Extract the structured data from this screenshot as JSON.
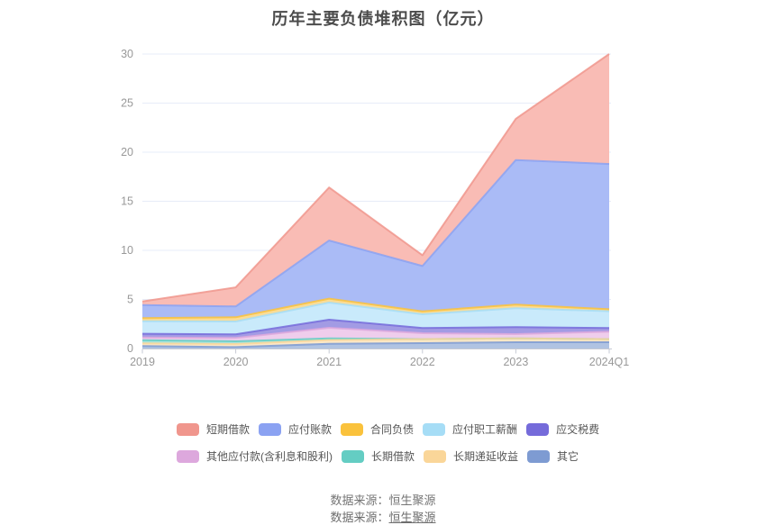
{
  "title": "历年主要负债堆积图（亿元）",
  "footer": {
    "source_label": "数据来源：恒生聚源",
    "source_prefix": "数据来源：",
    "source_name": "恒生聚源"
  },
  "chart_data": {
    "type": "area",
    "stacked": true,
    "stack_order": "last series at bottom, first series on top",
    "title": "历年主要负债堆积图（亿元）",
    "categories": [
      "2019",
      "2020",
      "2021",
      "2022",
      "2023",
      "2024Q1"
    ],
    "series": [
      {
        "key": "short-term-borrowings",
        "name": "短期借款",
        "color": "#F0968D",
        "fill": "#F9BCB5",
        "values": [
          0.37,
          1.95,
          5.4,
          1.1,
          4.2,
          11.2
        ]
      },
      {
        "key": "accounts-payable",
        "name": "应付账款",
        "color": "#8BA2F2",
        "fill": "#AABBF6",
        "values": [
          1.34,
          1.1,
          5.92,
          4.61,
          14.73,
          14.8
        ]
      },
      {
        "key": "contract-liabilities",
        "name": "合同负债",
        "color": "#FAC23C",
        "fill": "#FADC96",
        "values": [
          0.31,
          0.43,
          0.4,
          0.3,
          0.37,
          0.2
        ]
      },
      {
        "key": "employee-compensation-payable",
        "name": "应付职工薪酬",
        "color": "#A6DDF6",
        "fill": "#C9EAFB",
        "values": [
          1.28,
          1.31,
          1.74,
          1.41,
          1.93,
          1.72
        ]
      },
      {
        "key": "taxes-payable",
        "name": "应交税费",
        "color": "#756BDA",
        "fill": "#A29BE4",
        "values": [
          0.37,
          0.37,
          0.83,
          0.52,
          0.7,
          0.37
        ]
      },
      {
        "key": "other-payables-incl-interest-dividends",
        "name": "其他应付款(含利息和股利)",
        "color": "#DDA8DD",
        "fill": "#EFCDEC",
        "values": [
          0.28,
          0.34,
          1.07,
          0.61,
          0.43,
          0.76
        ]
      },
      {
        "key": "long-term-borrowings",
        "name": "长期借款",
        "color": "#64CDC3",
        "fill": "#A9E3DD",
        "values": [
          0.33,
          0.27,
          0.18,
          0.0,
          0.0,
          0.0
        ]
      },
      {
        "key": "long-term-deferred-income",
        "name": "长期递延收益",
        "color": "#FAD699",
        "fill": "#FCE8C6",
        "values": [
          0.27,
          0.31,
          0.37,
          0.4,
          0.4,
          0.31
        ]
      },
      {
        "key": "other",
        "name": "其它",
        "color": "#7E9BD2",
        "fill": "#B0C3E2",
        "values": [
          0.25,
          0.15,
          0.49,
          0.55,
          0.64,
          0.64
        ]
      }
    ],
    "legend_rows": [
      [
        0,
        1,
        2,
        3,
        4
      ],
      [
        5,
        6,
        7,
        8
      ]
    ],
    "legend_position": "bottom",
    "xlabel": "",
    "ylabel": "",
    "ylim": [
      0,
      30
    ],
    "yticks": [
      0,
      5,
      10,
      15,
      20,
      25,
      30
    ],
    "grid": true,
    "axis_label_color": "#999999",
    "grid_color": "#E7ECF8",
    "axis_line_color": "#C6CAD4"
  }
}
